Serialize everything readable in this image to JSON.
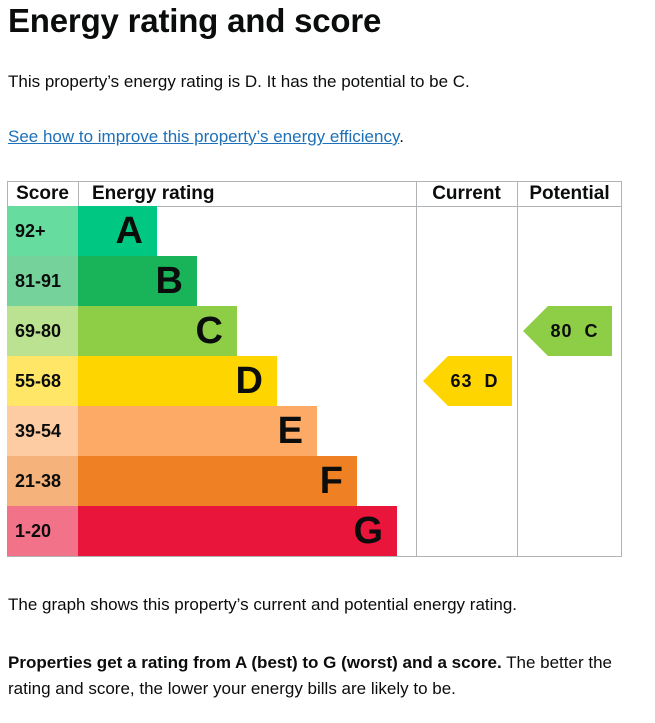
{
  "heading": "Energy rating and score",
  "intro": "This property’s energy rating is D. It has the potential to be C.",
  "link": {
    "text": "See how to improve this property’s energy efficiency",
    "suffix": "."
  },
  "chart_data": {
    "type": "bar",
    "headers": {
      "score": "Score",
      "energy_rating": "Energy rating",
      "current": "Current",
      "potential": "Potential"
    },
    "bands": [
      {
        "score": "92+",
        "letter": "A",
        "color": "#00c781",
        "score_bg": "#66dd9e"
      },
      {
        "score": "81-91",
        "letter": "B",
        "color": "#19b459",
        "score_bg": "#75d29a"
      },
      {
        "score": "69-80",
        "letter": "C",
        "color": "#8dce46",
        "score_bg": "#bbe290"
      },
      {
        "score": "55-68",
        "letter": "D",
        "color": "#ffd500",
        "score_bg": "#ffe666"
      },
      {
        "score": "39-54",
        "letter": "E",
        "color": "#fcaa65",
        "score_bg": "#fdcca3"
      },
      {
        "score": "21-38",
        "letter": "F",
        "color": "#ef8023",
        "score_bg": "#f5b37b"
      },
      {
        "score": "1-20",
        "letter": "G",
        "color": "#e9153b",
        "score_bg": "#f27389"
      }
    ],
    "current": {
      "score": 63,
      "band": "D",
      "label": "63  D",
      "color": "#ffd500"
    },
    "potential": {
      "score": 80,
      "band": "C",
      "label": "80  C",
      "color": "#8dce46"
    }
  },
  "p1": "The graph shows this property’s current and potential energy rating.",
  "p2_bold": "Properties get a rating from A (best) to G (worst) and a score.",
  "p2_rest": " The better the rating and score, the lower your energy bills are likely to be."
}
